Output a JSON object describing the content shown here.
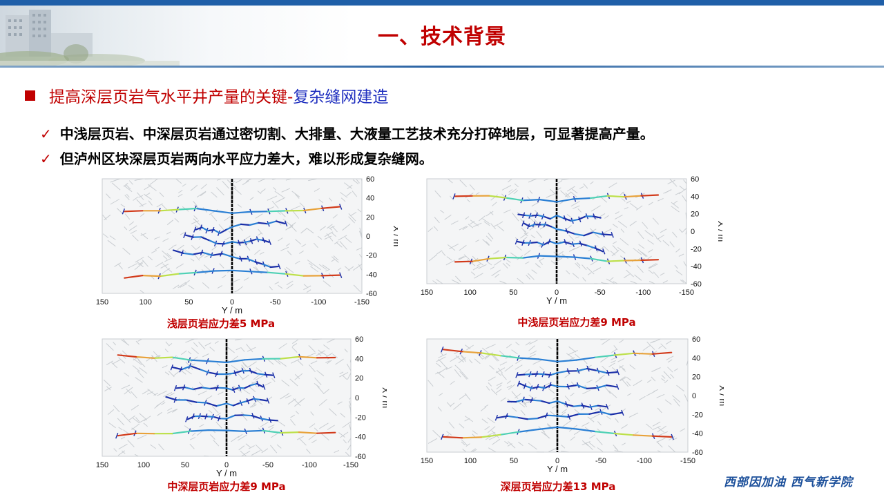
{
  "header": {
    "title": "一、技术背景"
  },
  "section": {
    "prefix": "提高深层页岩气水平井产量的关键-",
    "highlight": "复杂缝网建造"
  },
  "bullets": [
    "中浅层页岩、中深层页岩通过密切割、大排量、大液量工艺技术充分打碎地层，可显著提高产量。",
    "但泸州区块深层页岩两向水平应力差大，难以形成复杂缝网。"
  ],
  "signature": "西部因加油 西气新学院",
  "panel_axes": {
    "xlabel": "Y / m",
    "ylabel": "X / m",
    "x_ticks": [
      "150",
      "100",
      "50",
      "0",
      "-50",
      "-100",
      "-150"
    ],
    "y_ticks": [
      "60",
      "40",
      "20",
      "0",
      "-20",
      "-40",
      "-60"
    ]
  },
  "colors": {
    "accent_red": "#c00000",
    "accent_blue": "#1f2fbf",
    "header_blue": "#1f5fa8"
  },
  "panels": [
    {
      "caption": "浅层页岩应力差5 MPa",
      "stress_difference_mpa": 5
    },
    {
      "caption": "中浅层页岩应力差9 MPa",
      "stress_difference_mpa": 9
    },
    {
      "caption": "中深层页岩应力差9 MPa",
      "stress_difference_mpa": 9
    },
    {
      "caption": "深层页岩应力差13 MPa",
      "stress_difference_mpa": 13
    }
  ]
}
